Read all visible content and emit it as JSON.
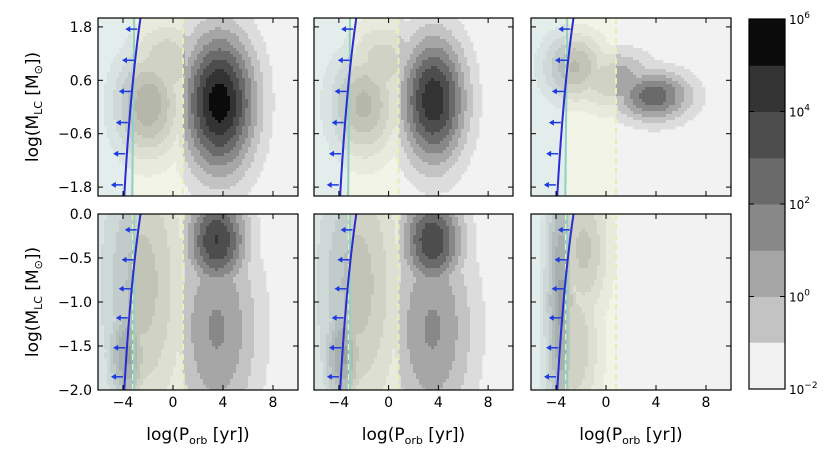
{
  "figure": {
    "colorbar": {
      "tick_labels": [
        "10",
        "10",
        "10",
        "10",
        "10"
      ],
      "tick_exponents": [
        "6",
        "4",
        "2",
        "0",
        "−2"
      ],
      "levels": 8,
      "colors": [
        "#f2f2f2",
        "#dcdcdc",
        "#c3c3c3",
        "#a6a6a6",
        "#888888",
        "#6a6a6a",
        "#4d4d4d",
        "#333333",
        "#0b0b0b"
      ]
    },
    "region_colors": {
      "left_band": "#d7ebe8",
      "middle_band": "#f3f5e0",
      "dashed_lines": "#e9edb6",
      "cyan_line": "#8fd0c8",
      "boundary_line": "#2a2ad0",
      "arrows": "#1e3be0"
    }
  },
  "chart_data": [
    {
      "type": "heatmap",
      "panel": "top-left",
      "ylabel_main": "log(M",
      "ylabel_sub": "LC",
      "ylabel_tail": " [M",
      "ylabel_end": "])",
      "xlabel": "",
      "ylim": [
        -2.0,
        2.0
      ],
      "xlim": [
        -6,
        10
      ],
      "yticks": [
        "1.8",
        "0.6",
        "−0.6",
        "−1.8"
      ],
      "xticks": [],
      "blobs": [
        {
          "x": 3.7,
          "y": 0.1,
          "sx": 2.1,
          "sy": 1.15,
          "peak": 1.0
        },
        {
          "x": -2.0,
          "y": 0.05,
          "sx": 1.9,
          "sy": 0.85,
          "peak": 0.68
        },
        {
          "x": -0.5,
          "y": 1.0,
          "sx": 2.2,
          "sy": 0.7,
          "peak": 0.45
        }
      ]
    },
    {
      "type": "heatmap",
      "panel": "top-middle",
      "xlabel": "",
      "ylim": [
        -2.0,
        2.0
      ],
      "xlim": [
        -6,
        10
      ],
      "yticks": [],
      "xticks": [],
      "blobs": [
        {
          "x": 3.6,
          "y": 0.15,
          "sx": 1.9,
          "sy": 1.05,
          "peak": 0.9
        },
        {
          "x": -2.0,
          "y": 0.05,
          "sx": 1.9,
          "sy": 0.85,
          "peak": 0.62
        },
        {
          "x": -0.5,
          "y": 1.0,
          "sx": 2.1,
          "sy": 0.7,
          "peak": 0.42
        }
      ]
    },
    {
      "type": "heatmap",
      "panel": "top-right",
      "xlabel": "",
      "ylim": [
        -2.0,
        2.0
      ],
      "xlim": [
        -6,
        10
      ],
      "yticks": [],
      "xticks": [],
      "blobs": [
        {
          "x": 3.8,
          "y": 0.25,
          "sx": 2.2,
          "sy": 0.42,
          "peak": 0.66
        },
        {
          "x": -2.5,
          "y": 0.9,
          "sx": 1.8,
          "sy": 0.55,
          "peak": 0.6
        },
        {
          "x": 0.5,
          "y": 0.6,
          "sx": 2.6,
          "sy": 0.5,
          "peak": 0.45
        }
      ]
    },
    {
      "type": "heatmap",
      "panel": "bottom-left",
      "ylabel_main": "log(M",
      "ylabel_sub": "LC",
      "ylabel_tail": " [M",
      "ylabel_end": "])",
      "xlabel_main": "log(P",
      "xlabel_sub": "orb",
      "xlabel_tail": " [yr])",
      "ylim": [
        -2.0,
        0.0
      ],
      "xlim": [
        -6,
        10
      ],
      "yticks": [
        "0.0",
        "−0.5",
        "−1.0",
        "−1.5",
        "−2.0"
      ],
      "xticks": [
        "−4",
        "0",
        "4",
        "8"
      ],
      "blobs": [
        {
          "x": 3.5,
          "y": -0.3,
          "sx": 1.8,
          "sy": 0.4,
          "peak": 0.82
        },
        {
          "x": -3.6,
          "y": -1.6,
          "sx": 1.2,
          "sy": 0.45,
          "peak": 0.72
        },
        {
          "x": -2.5,
          "y": -0.8,
          "sx": 2.6,
          "sy": 1.2,
          "peak": 0.52
        },
        {
          "x": 3.5,
          "y": -1.3,
          "sx": 2.5,
          "sy": 0.9,
          "peak": 0.48
        }
      ]
    },
    {
      "type": "heatmap",
      "panel": "bottom-middle",
      "xlabel_main": "log(P",
      "xlabel_sub": "orb",
      "xlabel_tail": " [yr])",
      "ylim": [
        -2.0,
        0.0
      ],
      "xlim": [
        -6,
        10
      ],
      "yticks": [],
      "xticks": [
        "−4",
        "0",
        "4",
        "8"
      ],
      "blobs": [
        {
          "x": 3.5,
          "y": -0.3,
          "sx": 1.8,
          "sy": 0.4,
          "peak": 0.8
        },
        {
          "x": -3.6,
          "y": -1.6,
          "sx": 1.2,
          "sy": 0.45,
          "peak": 0.72
        },
        {
          "x": -2.5,
          "y": -0.8,
          "sx": 2.6,
          "sy": 1.2,
          "peak": 0.52
        },
        {
          "x": 3.5,
          "y": -1.3,
          "sx": 2.5,
          "sy": 0.9,
          "peak": 0.48
        }
      ]
    },
    {
      "type": "heatmap",
      "panel": "bottom-right",
      "xlabel_main": "log(P",
      "xlabel_sub": "orb",
      "xlabel_tail": " [yr])",
      "ylim": [
        -2.0,
        0.0
      ],
      "xlim": [
        -6,
        10
      ],
      "yticks": [],
      "xticks": [
        "−4",
        "0",
        "4",
        "8"
      ],
      "blobs": [
        {
          "x": -3.6,
          "y": -1.0,
          "sx": 0.9,
          "sy": 1.2,
          "peak": 0.72
        },
        {
          "x": -1.8,
          "y": -0.4,
          "sx": 1.5,
          "sy": 0.6,
          "peak": 0.5
        },
        {
          "x": -2.5,
          "y": -1.5,
          "sx": 1.5,
          "sy": 0.7,
          "peak": 0.45
        }
      ]
    }
  ]
}
